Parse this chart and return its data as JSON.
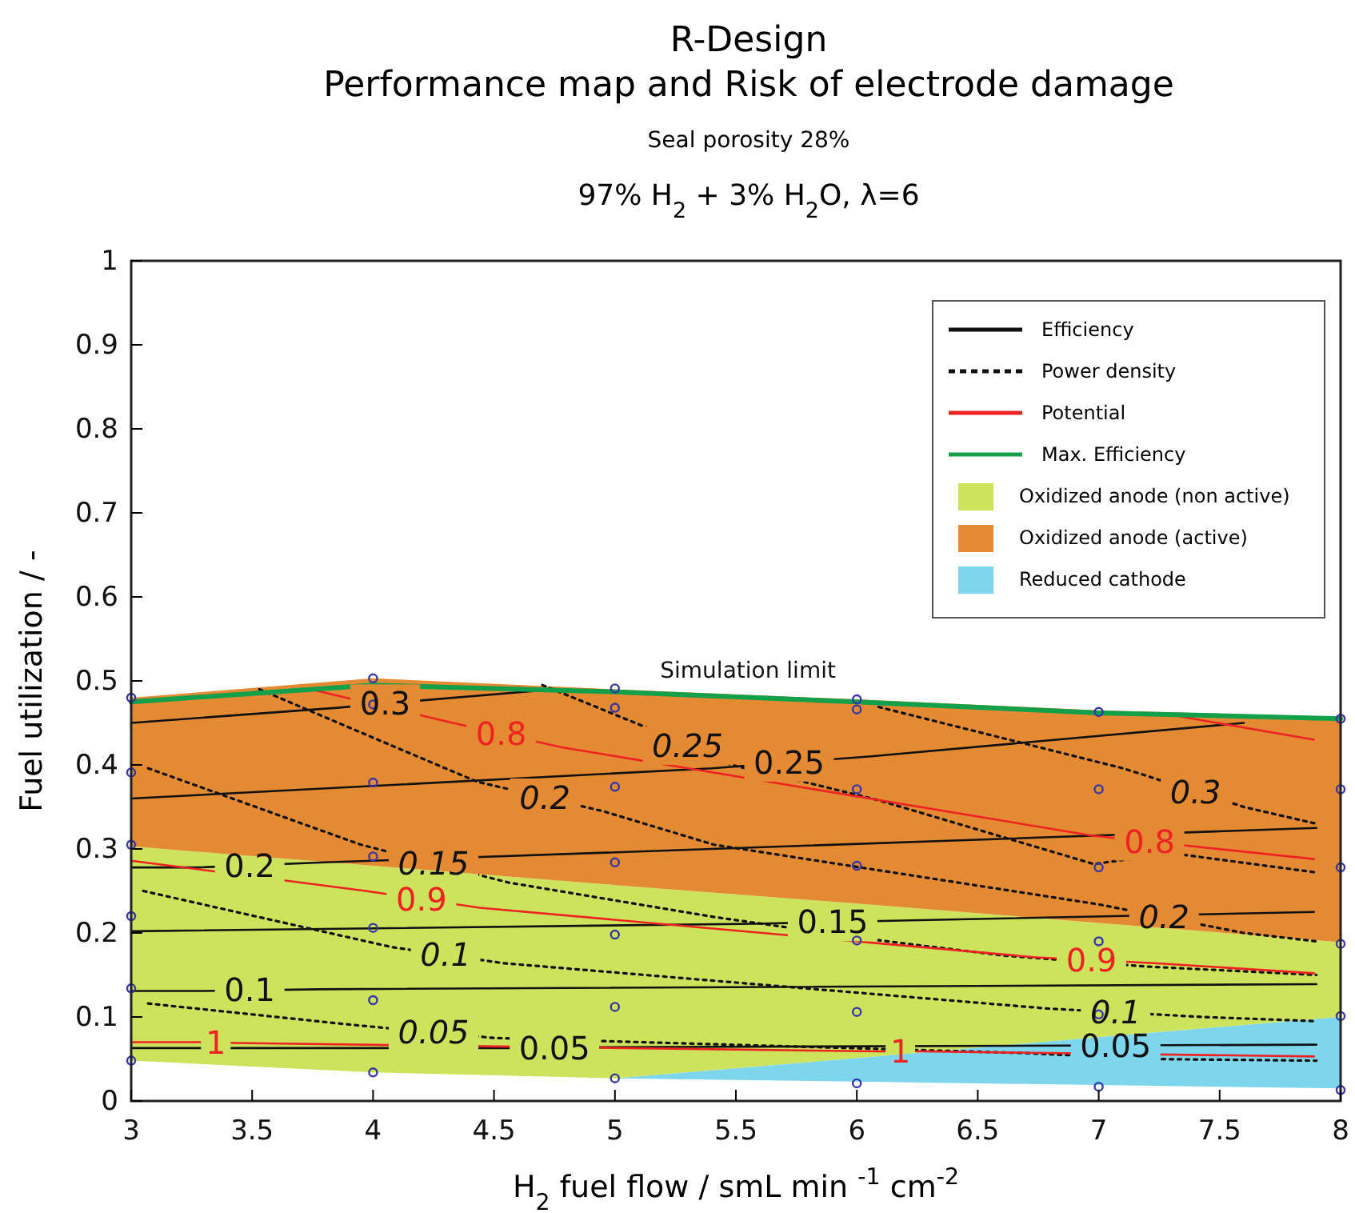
{
  "chart_data": {
    "type": "line",
    "title": "R-Design\nPerformance map and Risk of electrode damage",
    "subtitle": "Seal porosity 28%",
    "xlabel": "H$_{2}$ fuel flow / smL min $^{-1}$ cm$^{-2}$",
    "ylabel": "Fuel utilization / -",
    "annotations": [
      "97% H$_{2}$ + 3% H$_{2}$O,  λ=6",
      {
        "text": "Simulation limit",
        "x": 5.55,
        "y": 0.48
      },
      {
        "text": "0.3",
        "x": 4.05,
        "y": 0.473
      },
      {
        "text": "0.25",
        "x": 5.72,
        "y": 0.403
      },
      {
        "text": "0.2",
        "x": 3.49,
        "y": 0.28
      },
      {
        "text": "0.15",
        "x": 5.9,
        "y": 0.213
      },
      {
        "text": "0.1",
        "x": 3.49,
        "y": 0.132
      },
      {
        "text": "0.05",
        "x": 4.75,
        "y": 0.063
      },
      {
        "text": "0.05",
        "x": 7.07,
        "y": 0.066
      },
      {
        "text": "0.05",
        "x": 4.25,
        "y": 0.082
      },
      {
        "text": "0.1",
        "x": 4.3,
        "y": 0.174
      },
      {
        "text": "0.1",
        "x": 7.07,
        "y": 0.106
      },
      {
        "text": "0.15",
        "x": 4.25,
        "y": 0.283
      },
      {
        "text": "0.2",
        "x": 4.71,
        "y": 0.361
      },
      {
        "text": "0.2",
        "x": 7.27,
        "y": 0.219
      },
      {
        "text": "0.25",
        "x": 5.3,
        "y": 0.423
      },
      {
        "text": "0.3",
        "x": 7.4,
        "y": 0.368
      },
      {
        "text": "0.8",
        "x": 4.53,
        "y": 0.437
      },
      {
        "text": "0.8",
        "x": 7.21,
        "y": 0.309
      },
      {
        "text": "0.9",
        "x": 4.2,
        "y": 0.24
      },
      {
        "text": "0.9",
        "x": 6.97,
        "y": 0.168
      },
      {
        "text": "1",
        "x": 3.35,
        "y": 0.07
      },
      {
        "text": "1",
        "x": 6.18,
        "y": 0.059
      }
    ],
    "xlim": [
      3,
      8
    ],
    "xticks": [
      3,
      3.5,
      4,
      4.5,
      5,
      5.5,
      6,
      6.5,
      7,
      7.5,
      8
    ],
    "ylim": [
      0,
      1
    ],
    "yticks": [
      0,
      0.1,
      0.2,
      0.3,
      0.4,
      0.5,
      0.6,
      0.7,
      0.8,
      0.9,
      1
    ],
    "grid": false,
    "legend": "top right",
    "series": [
      {
        "type": "area",
        "name": "Oxidized anode (non active)",
        "color": "#cde35c",
        "x": [
          3,
          4,
          5,
          6,
          7,
          8,
          8,
          7,
          6,
          5,
          4,
          3
        ],
        "values": [
          0.303,
          0.28,
          0.257,
          0.235,
          0.212,
          0.189,
          0.1,
          0.076,
          0.051,
          0.027,
          0.034,
          0.048
        ]
      },
      {
        "type": "area",
        "name": "Oxidized anode (active)",
        "color": "#e48a32",
        "x": [
          3,
          4,
          5,
          6,
          7,
          8,
          8,
          7,
          6,
          5,
          4,
          3
        ],
        "values": [
          0.48,
          0.503,
          0.49,
          0.478,
          0.465,
          0.457,
          0.189,
          0.212,
          0.235,
          0.257,
          0.28,
          0.303
        ]
      },
      {
        "type": "area",
        "name": "Reduced cathode",
        "color": "#7dd6ec",
        "x": [
          5,
          6,
          7,
          8,
          8,
          7,
          6
        ],
        "values": [
          0.027,
          0.051,
          0.076,
          0.1,
          0.015,
          0.019,
          0.023
        ]
      },
      {
        "type": "line",
        "name": "Efficiency",
        "color": "#111111",
        "line_style": "solid",
        "x": [
          3,
          3.85,
          4.25,
          4.75
        ],
        "values": [
          0.45,
          0.468,
          0.478,
          0.49
        ]
      },
      {
        "type": "line",
        "color": "#111111",
        "line_style": "solid",
        "x": [
          3,
          5.4,
          6.05,
          7.6
        ],
        "values": [
          0.36,
          0.396,
          0.41,
          0.45
        ]
      },
      {
        "type": "line",
        "color": "#111111",
        "line_style": "solid",
        "x": [
          3,
          3.28,
          3.8,
          7.9
        ],
        "values": [
          0.278,
          0.278,
          0.284,
          0.325
        ]
      },
      {
        "type": "line",
        "color": "#111111",
        "line_style": "solid",
        "x": [
          3,
          5.58,
          6.22,
          7.89
        ],
        "values": [
          0.202,
          0.211,
          0.215,
          0.225
        ]
      },
      {
        "type": "line",
        "color": "#111111",
        "line_style": "solid",
        "x": [
          3,
          3.3,
          3.78,
          7.9
        ],
        "values": [
          0.131,
          0.131,
          0.133,
          0.139
        ]
      },
      {
        "type": "line",
        "color": "#111111",
        "line_style": "solid",
        "x": [
          3,
          4.6,
          4.95,
          7.9
        ],
        "values": [
          0.063,
          0.063,
          0.064,
          0.067
        ]
      },
      {
        "type": "line",
        "name": "Power density",
        "color": "#111111",
        "line_style": "dotted",
        "x": [
          3.07,
          3.9,
          4.5,
          6.7,
          7.2,
          7.9
        ],
        "values": [
          0.116,
          0.091,
          0.075,
          0.057,
          0.05,
          0.048
        ]
      },
      {
        "type": "line",
        "color": "#111111",
        "line_style": "dotted",
        "x": [
          3.05,
          4.08,
          4.54,
          6.79,
          7.43,
          7.9
        ],
        "values": [
          0.25,
          0.183,
          0.164,
          0.11,
          0.1,
          0.095
        ]
      },
      {
        "type": "line",
        "color": "#111111",
        "line_style": "dotted",
        "x": [
          3.07,
          3.95,
          4.56,
          5.41,
          6.07,
          6.61,
          7.2,
          7.9
        ],
        "values": [
          0.396,
          0.305,
          0.26,
          0.219,
          0.192,
          0.173,
          0.16,
          0.15
        ]
      },
      {
        "type": "line",
        "color": "#111111",
        "line_style": "dotted",
        "x": [
          3.53,
          4.02,
          4.43,
          4.95,
          5.41,
          7.0,
          7.6,
          7.9
        ],
        "values": [
          0.49,
          0.43,
          0.38,
          0.345,
          0.305,
          0.234,
          0.2,
          0.19
        ]
      },
      {
        "type": "line",
        "color": "#111111",
        "line_style": "dotted",
        "x": [
          4.7,
          5.17,
          5.48,
          5.78,
          6.09,
          6.98,
          7.3,
          7.9
        ],
        "values": [
          0.495,
          0.44,
          0.4,
          0.38,
          0.358,
          0.282,
          0.295,
          0.272
        ]
      },
      {
        "type": "line",
        "color": "#111111",
        "line_style": "dotted",
        "x": [
          6.09,
          7.1,
          7.6,
          7.9
        ],
        "values": [
          0.469,
          0.396,
          0.35,
          0.33
        ]
      },
      {
        "type": "line",
        "name": "Potential",
        "color": "#ee2222",
        "line_style": "solid",
        "x": [
          3.77,
          4.33,
          4.78,
          6.97,
          7.46,
          7.89
        ],
        "values": [
          0.488,
          0.45,
          0.421,
          0.316,
          0.301,
          0.288
        ]
      },
      {
        "type": "line",
        "color": "#ee2222",
        "line_style": "solid",
        "x": [
          7.27,
          7.89
        ],
        "values": [
          0.461,
          0.43
        ]
      },
      {
        "type": "line",
        "color": "#ee2222",
        "line_style": "solid",
        "x": [
          3,
          3.97,
          4.44,
          6.74,
          7.23,
          7.89
        ],
        "values": [
          0.286,
          0.25,
          0.23,
          0.171,
          0.164,
          0.152
        ]
      },
      {
        "type": "line",
        "color": "#ee2222",
        "line_style": "solid",
        "x": [
          3,
          3.3,
          3.43,
          6.1,
          6.27,
          7.89
        ],
        "values": [
          0.07,
          0.07,
          0.069,
          0.059,
          0.059,
          0.053
        ]
      },
      {
        "type": "line",
        "name": "Max. Efficiency",
        "color": "#13a04a",
        "line_style": "solid",
        "x": [
          3,
          4,
          5,
          6,
          7,
          8
        ],
        "values": [
          0.475,
          0.495,
          0.487,
          0.475,
          0.462,
          0.455
        ]
      },
      {
        "type": "scatter",
        "color": "#3636a8",
        "marker": "circle",
        "x": [
          3,
          3,
          3,
          3,
          3,
          3,
          4,
          4,
          4,
          4,
          4,
          4,
          4,
          5,
          5,
          5,
          5,
          5,
          5,
          5,
          6,
          6,
          6,
          6,
          6,
          6,
          6,
          7,
          7,
          7,
          7,
          7,
          7,
          8,
          8,
          8,
          8,
          8,
          8
        ],
        "values": [
          0.048,
          0.134,
          0.22,
          0.305,
          0.391,
          0.48,
          0.034,
          0.12,
          0.206,
          0.291,
          0.379,
          0.472,
          0.503,
          0.027,
          0.112,
          0.198,
          0.284,
          0.374,
          0.468,
          0.491,
          0.021,
          0.106,
          0.191,
          0.28,
          0.371,
          0.466,
          0.478,
          0.017,
          0.103,
          0.19,
          0.278,
          0.371,
          0.463,
          0.013,
          0.101,
          0.187,
          0.278,
          0.371,
          0.455
        ]
      }
    ]
  }
}
